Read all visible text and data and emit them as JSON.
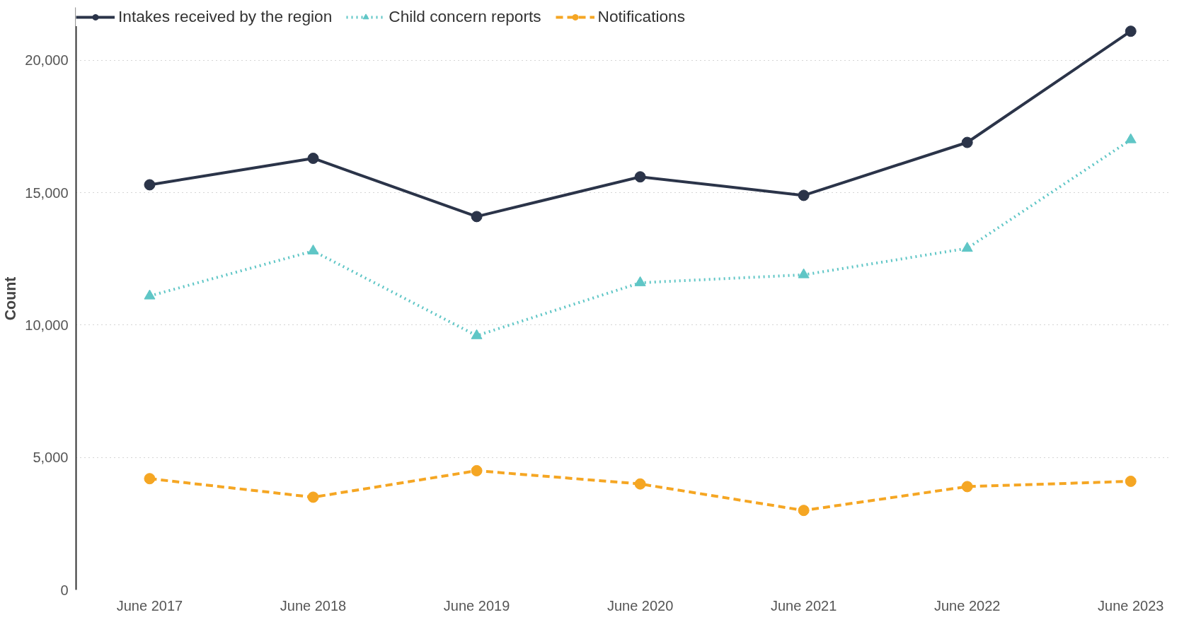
{
  "chart_data": {
    "type": "line",
    "ylabel": "Count",
    "categories": [
      "June 2017",
      "June 2018",
      "June 2019",
      "June 2020",
      "June 2021",
      "June 2022",
      "June 2023"
    ],
    "series": [
      {
        "name": "Intakes received by the region",
        "color": "#2b3449",
        "marker": "circle",
        "line_style": "solid",
        "values": [
          15300,
          16300,
          14100,
          15600,
          14900,
          16900,
          21100
        ]
      },
      {
        "name": "Child concern reports",
        "color": "#5fc6c6",
        "marker": "triangle",
        "line_style": "dotted",
        "values": [
          11100,
          12800,
          9600,
          11600,
          11900,
          12900,
          17000
        ]
      },
      {
        "name": "Notifications",
        "color": "#f5a623",
        "marker": "circle",
        "line_style": "dashed",
        "values": [
          4200,
          3500,
          4500,
          4000,
          3000,
          3900,
          4100
        ]
      }
    ],
    "ylim": [
      0,
      22000
    ],
    "yticks": [
      {
        "value": 0,
        "label": "0"
      },
      {
        "value": 5000,
        "label": "5,000"
      },
      {
        "value": 10000,
        "label": "10,000"
      },
      {
        "value": 15000,
        "label": "15,000"
      },
      {
        "value": 20000,
        "label": "20,000"
      }
    ],
    "grid": "y",
    "legend": "top left"
  }
}
